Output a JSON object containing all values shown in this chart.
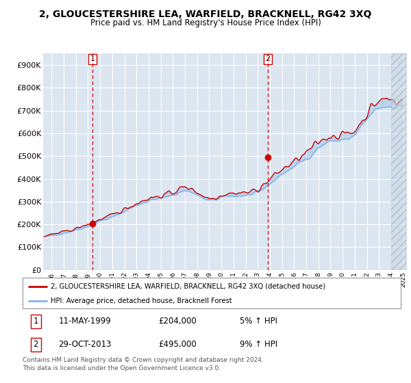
{
  "title": "2, GLOUCESTERSHIRE LEA, WARFIELD, BRACKNELL, RG42 3XQ",
  "subtitle": "Price paid vs. HM Land Registry's House Price Index (HPI)",
  "ylabel_ticks": [
    "£0",
    "£100K",
    "£200K",
    "£300K",
    "£400K",
    "£500K",
    "£600K",
    "£700K",
    "£800K",
    "£900K"
  ],
  "ytick_vals": [
    0,
    100000,
    200000,
    300000,
    400000,
    500000,
    600000,
    700000,
    800000,
    900000
  ],
  "ylim": [
    0,
    950000
  ],
  "plot_bg": "#dce6f1",
  "hpi_color": "#7fb2e5",
  "price_color": "#cc0000",
  "dashed_color": "#cc0000",
  "legend_label_price": "2, GLOUCESTERSHIRE LEA, WARFIELD, BRACKNELL, RG42 3XQ (detached house)",
  "legend_label_hpi": "HPI: Average price, detached house, Bracknell Forest",
  "annotation1_date": "11-MAY-1999",
  "annotation1_price": "£204,000",
  "annotation1_pct": "5% ↑ HPI",
  "annotation2_date": "29-OCT-2013",
  "annotation2_price": "£495,000",
  "annotation2_pct": "9% ↑ HPI",
  "footer": "Contains HM Land Registry data © Crown copyright and database right 2024.\nThis data is licensed under the Open Government Licence v3.0.",
  "sale1_x": 1999.36,
  "sale1_y": 204000,
  "sale2_x": 2013.83,
  "sale2_y": 495000,
  "hatched_region_start": 2024.0,
  "hatched_region_end": 2025.3,
  "xlim": [
    1995.3,
    2025.3
  ],
  "xtick_years": [
    1996,
    1997,
    1998,
    1999,
    2000,
    2001,
    2002,
    2003,
    2004,
    2005,
    2006,
    2007,
    2008,
    2009,
    2010,
    2011,
    2012,
    2013,
    2014,
    2015,
    2016,
    2017,
    2018,
    2019,
    2020,
    2021,
    2022,
    2023,
    2024,
    2025
  ]
}
